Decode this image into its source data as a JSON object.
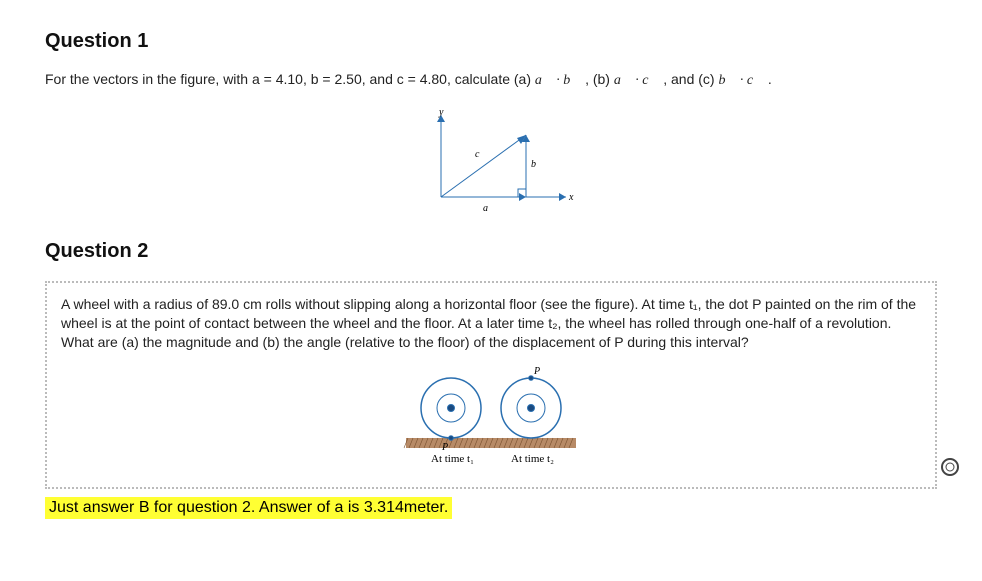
{
  "q1": {
    "heading": "Question 1",
    "prose_pre": "For the vectors in the figure, with a = 4.10, b = 2.50, and c = 4.80, calculate ",
    "parts": {
      "a_label": "(a) ",
      "b_label": " , (b) ",
      "c_label": " , and (c) "
    },
    "tail": " .",
    "figure": {
      "axis_y_label": "y",
      "axis_x_label": "x",
      "vec_a": "a",
      "vec_b": "b",
      "vec_c": "c",
      "colors": {
        "axis": "#2a6fb0",
        "right_angle": "#2a6fb0"
      }
    }
  },
  "q2": {
    "heading": "Question 2",
    "prose": "A wheel with a radius of 89.0 cm rolls without slipping along a horizontal floor (see the figure). At time t₁, the dot P painted on the rim of the wheel is at the point of contact between the wheel and the floor. At a later time t₂, the wheel has rolled through one-half of a revolution. What are (a) the magnitude and (b) the angle (relative to the floor) of the displacement of P during this interval?",
    "figure": {
      "p_label": "P",
      "caption1": "At time t₁",
      "caption2": "At time t₂",
      "colors": {
        "wheel_stroke": "#2a6fb0",
        "floor_fill": "#b78a66",
        "floor_pattern": "#7a5230",
        "center_dot": "#1a4a80",
        "p_dot": "#1a4a80"
      }
    },
    "highlight": "Just answer B for question 2. Answer of a is 3.314meter."
  },
  "feedback": {
    "outer_color": "#444",
    "inner_color": "#ffffff"
  }
}
